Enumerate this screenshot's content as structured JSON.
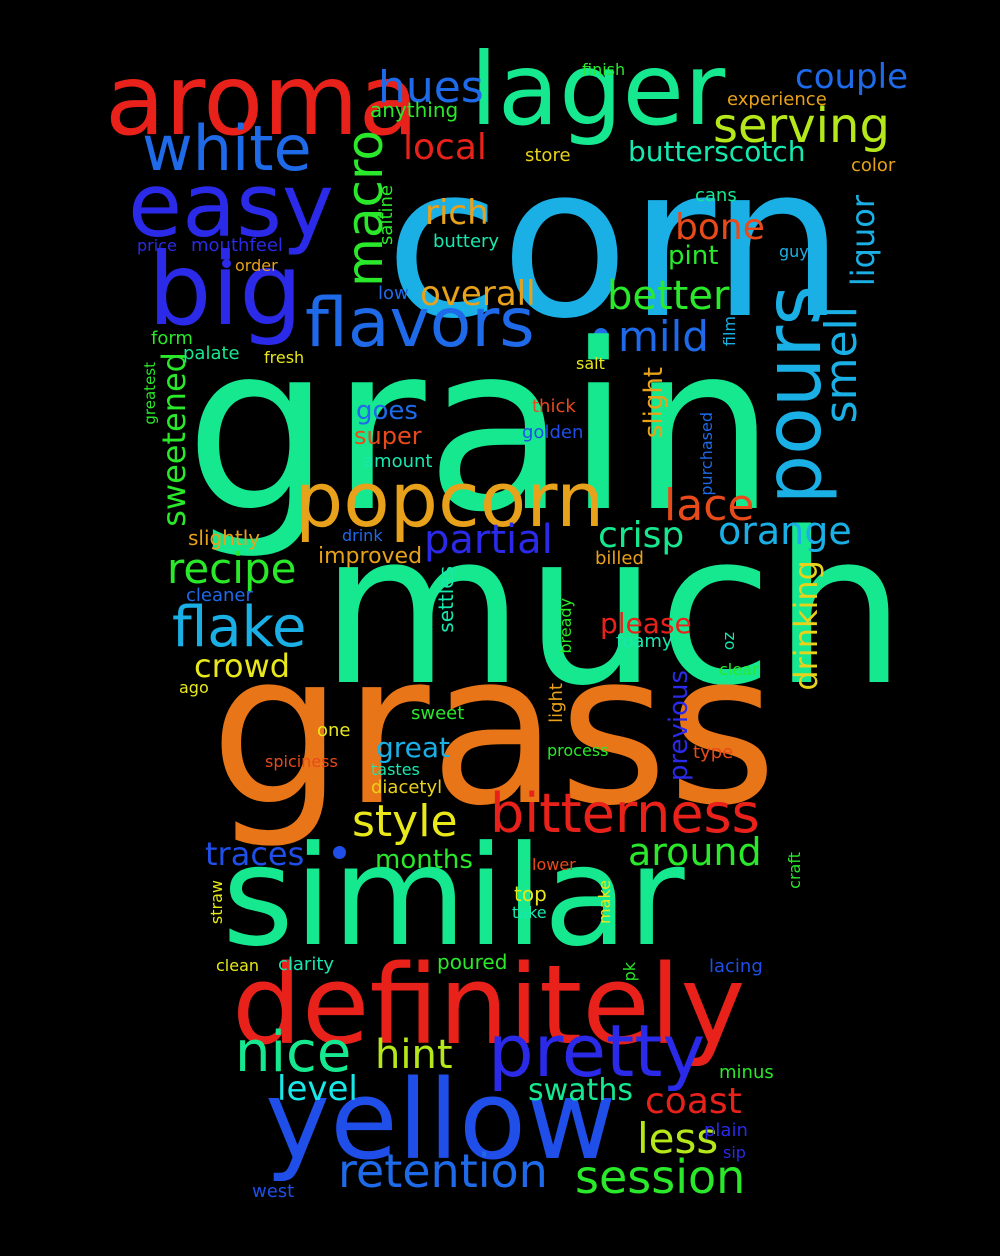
{
  "words": [
    {
      "id": "corn",
      "text": "corn",
      "color": "#1ab0e6"
    },
    {
      "id": "grain",
      "text": "grain",
      "color": "#16e88f"
    },
    {
      "id": "much",
      "text": "much",
      "color": "#16e88f"
    },
    {
      "id": "grass",
      "text": "grass",
      "color": "#e87517"
    },
    {
      "id": "similar",
      "text": "similar",
      "color": "#16e88f"
    },
    {
      "id": "definitely",
      "text": "definitely",
      "color": "#e8221a"
    },
    {
      "id": "yellow",
      "text": "yellow",
      "color": "#1f4fe8"
    },
    {
      "id": "aroma",
      "text": "aroma",
      "color": "#e8221a"
    },
    {
      "id": "lager",
      "text": "lager",
      "color": "#16e88f"
    },
    {
      "id": "popcorn",
      "text": "popcorn",
      "color": "#e8a11a"
    },
    {
      "id": "easy",
      "text": "easy",
      "color": "#2a2ae8"
    },
    {
      "id": "big",
      "text": "big",
      "color": "#2a2ae8"
    },
    {
      "id": "pours",
      "text": "pours",
      "color": "#1ab0e6"
    },
    {
      "id": "pretty",
      "text": "pretty",
      "color": "#2a2ae8"
    },
    {
      "id": "flavors",
      "text": "flavors",
      "color": "#1f6ae8"
    },
    {
      "id": "white",
      "text": "white",
      "color": "#1f6ae8"
    },
    {
      "id": "bitterness",
      "text": "bitterness",
      "color": "#e8221a"
    },
    {
      "id": "retention",
      "text": "retention",
      "color": "#1f6ae8"
    },
    {
      "id": "session",
      "text": "session",
      "color": "#2ae82a"
    },
    {
      "id": "flake",
      "text": "flake",
      "color": "#1ab0e6"
    },
    {
      "id": "nice",
      "text": "nice",
      "color": "#16e88f"
    },
    {
      "id": "macro",
      "text": "macro",
      "color": "#2ae82a"
    },
    {
      "id": "serving",
      "text": "serving",
      "color": "#b5e81a"
    },
    {
      "id": "hues",
      "text": "hues",
      "color": "#1f6ae8"
    },
    {
      "id": "smell",
      "text": "smell",
      "color": "#1ab0e6"
    },
    {
      "id": "style",
      "text": "style",
      "color": "#e8e81a"
    },
    {
      "id": "partial",
      "text": "partial",
      "color": "#2a2ae8"
    },
    {
      "id": "recipe",
      "text": "recipe",
      "color": "#2ae82a"
    },
    {
      "id": "hint",
      "text": "hint",
      "color": "#b5e81a"
    },
    {
      "id": "less",
      "text": "less",
      "color": "#b5e81a"
    },
    {
      "id": "coast",
      "text": "coast",
      "color": "#e8221a"
    },
    {
      "id": "around",
      "text": "around",
      "color": "#2ae82a"
    },
    {
      "id": "lace",
      "text": "lace",
      "color": "#e84a1a"
    },
    {
      "id": "orange",
      "text": "orange",
      "color": "#1ab0e6"
    },
    {
      "id": "crisp",
      "text": "crisp",
      "color": "#16e88f"
    },
    {
      "id": "mild",
      "text": "mild",
      "color": "#1f6ae8"
    },
    {
      "id": "better",
      "text": "better",
      "color": "#2ae82a"
    },
    {
      "id": "overall",
      "text": "overall",
      "color": "#e8a11a"
    },
    {
      "id": "local",
      "text": "local",
      "color": "#e8221a"
    },
    {
      "id": "couple",
      "text": "couple",
      "color": "#1f6ae8"
    },
    {
      "id": "butterscotch",
      "text": "butterscotch",
      "color": "#16e8b0"
    },
    {
      "id": "rich",
      "text": "rich",
      "color": "#e8a11a"
    },
    {
      "id": "bone",
      "text": "bone",
      "color": "#e84a1a"
    },
    {
      "id": "pint",
      "text": "pint",
      "color": "#2ae82a"
    },
    {
      "id": "liquor",
      "text": "liquor",
      "color": "#1ab0e6"
    },
    {
      "id": "sweetened",
      "text": "sweetened",
      "color": "#2ae82a"
    },
    {
      "id": "drinking",
      "text": "drinking",
      "color": "#e8d21a"
    },
    {
      "id": "traces",
      "text": "traces",
      "color": "#1f4fe8"
    },
    {
      "id": "level",
      "text": "level",
      "color": "#1ae8e8"
    },
    {
      "id": "swaths",
      "text": "swaths",
      "color": "#16e88f"
    },
    {
      "id": "crowd",
      "text": "crowd",
      "color": "#e8e81a"
    },
    {
      "id": "previous",
      "text": "previous",
      "color": "#2a2ae8"
    },
    {
      "id": "please",
      "text": "please",
      "color": "#e8221a"
    },
    {
      "id": "great",
      "text": "great",
      "color": "#1ab0e6"
    },
    {
      "id": "months",
      "text": "months",
      "color": "#2ae82a"
    },
    {
      "id": "goes",
      "text": "goes",
      "color": "#1f6ae8"
    },
    {
      "id": "super",
      "text": "super",
      "color": "#e84a1a"
    },
    {
      "id": "slight",
      "text": "slight",
      "color": "#e8a11a"
    },
    {
      "id": "anything",
      "text": "anything",
      "color": "#2ae82a"
    },
    {
      "id": "finish",
      "text": "finish",
      "color": "#2ae82a"
    },
    {
      "id": "experience",
      "text": "experience",
      "color": "#e8a11a"
    },
    {
      "id": "store",
      "text": "store",
      "color": "#e8d21a"
    },
    {
      "id": "color",
      "text": "color",
      "color": "#e8a11a"
    },
    {
      "id": "cans",
      "text": "cans",
      "color": "#16e88f"
    },
    {
      "id": "saltine",
      "text": "saltine",
      "color": "#2ae82a"
    },
    {
      "id": "buttery",
      "text": "buttery",
      "color": "#16e8b0"
    },
    {
      "id": "guys",
      "text": "guys",
      "color": "#1ab0e6"
    },
    {
      "id": "price",
      "text": "price",
      "color": "#2a2ae8"
    },
    {
      "id": "mouthfeel",
      "text": "mouthfeel",
      "color": "#2a2ae8"
    },
    {
      "id": "order",
      "text": "order",
      "color": "#e8a11a"
    },
    {
      "id": "low",
      "text": "low",
      "color": "#1f6ae8"
    },
    {
      "id": "form",
      "text": "form",
      "color": "#2ae82a"
    },
    {
      "id": "palate",
      "text": "palate",
      "color": "#16e88f"
    },
    {
      "id": "fresh",
      "text": "fresh",
      "color": "#e8e81a"
    },
    {
      "id": "film",
      "text": "film",
      "color": "#1ab0e6"
    },
    {
      "id": "salt",
      "text": "salt",
      "color": "#e8e81a"
    },
    {
      "id": "greatest",
      "text": "greatest",
      "color": "#2ae82a"
    },
    {
      "id": "thick",
      "text": "thick",
      "color": "#e84a1a"
    },
    {
      "id": "golden",
      "text": "golden",
      "color": "#1f4fe8"
    },
    {
      "id": "purchased",
      "text": "purchased",
      "color": "#1f6ae8"
    },
    {
      "id": "amount",
      "text": "amount",
      "color": "#16e8b0"
    },
    {
      "id": "drink",
      "text": "drink",
      "color": "#1f6ae8"
    },
    {
      "id": "slightly",
      "text": "slightly",
      "color": "#e8a11a"
    },
    {
      "id": "improved",
      "text": "improved",
      "color": "#e8a11a"
    },
    {
      "id": "billed",
      "text": "billed",
      "color": "#e8a11a"
    },
    {
      "id": "cleaner",
      "text": "cleaner",
      "color": "#1f6ae8"
    },
    {
      "id": "settles",
      "text": "settles",
      "color": "#16e8b0"
    },
    {
      "id": "bready",
      "text": "bready",
      "color": "#2ae82a"
    },
    {
      "id": "foamy",
      "text": "foamy",
      "color": "#16e8b0"
    },
    {
      "id": "oz",
      "text": "oz",
      "color": "#16e8b0"
    },
    {
      "id": "ago",
      "text": "ago",
      "color": "#e8e81a"
    },
    {
      "id": "clear",
      "text": "clear",
      "color": "#2ae82a"
    },
    {
      "id": "one",
      "text": "one",
      "color": "#e8e81a"
    },
    {
      "id": "sweet",
      "text": "sweet",
      "color": "#2ae82a"
    },
    {
      "id": "light",
      "text": "light",
      "color": "#e8a11a"
    },
    {
      "id": "process",
      "text": "process",
      "color": "#2ae82a"
    },
    {
      "id": "type",
      "text": "type",
      "color": "#e84a1a"
    },
    {
      "id": "spiciness",
      "text": "spiciness",
      "color": "#e84a1a"
    },
    {
      "id": "tastes",
      "text": "tastes",
      "color": "#16e8b0"
    },
    {
      "id": "diacetyl",
      "text": "diacetyl",
      "color": "#e8d21a"
    },
    {
      "id": "lower",
      "text": "lower",
      "color": "#e84a1a"
    },
    {
      "id": "top",
      "text": "top",
      "color": "#e8e81a"
    },
    {
      "id": "straw",
      "text": "straw",
      "color": "#e8e81a"
    },
    {
      "id": "take",
      "text": "take",
      "color": "#16e8b0"
    },
    {
      "id": "make",
      "text": "make",
      "color": "#e8e81a"
    },
    {
      "id": "craft",
      "text": "craft",
      "color": "#2ae82a"
    },
    {
      "id": "clean",
      "text": "clean",
      "color": "#e8e81a"
    },
    {
      "id": "clarity",
      "text": "clarity",
      "color": "#16e8b0"
    },
    {
      "id": "poured",
      "text": "poured",
      "color": "#2ae82a"
    },
    {
      "id": "pk",
      "text": "pk",
      "color": "#2ae82a"
    },
    {
      "id": "lacing",
      "text": "lacing",
      "color": "#1f4fe8"
    },
    {
      "id": "minus",
      "text": "minus",
      "color": "#2ae82a"
    },
    {
      "id": "plain",
      "text": "plain",
      "color": "#2a2ae8"
    },
    {
      "id": "sip",
      "text": "sip",
      "color": "#2a2ae8"
    },
    {
      "id": "west",
      "text": "west",
      "color": "#1f4fe8"
    }
  ]
}
